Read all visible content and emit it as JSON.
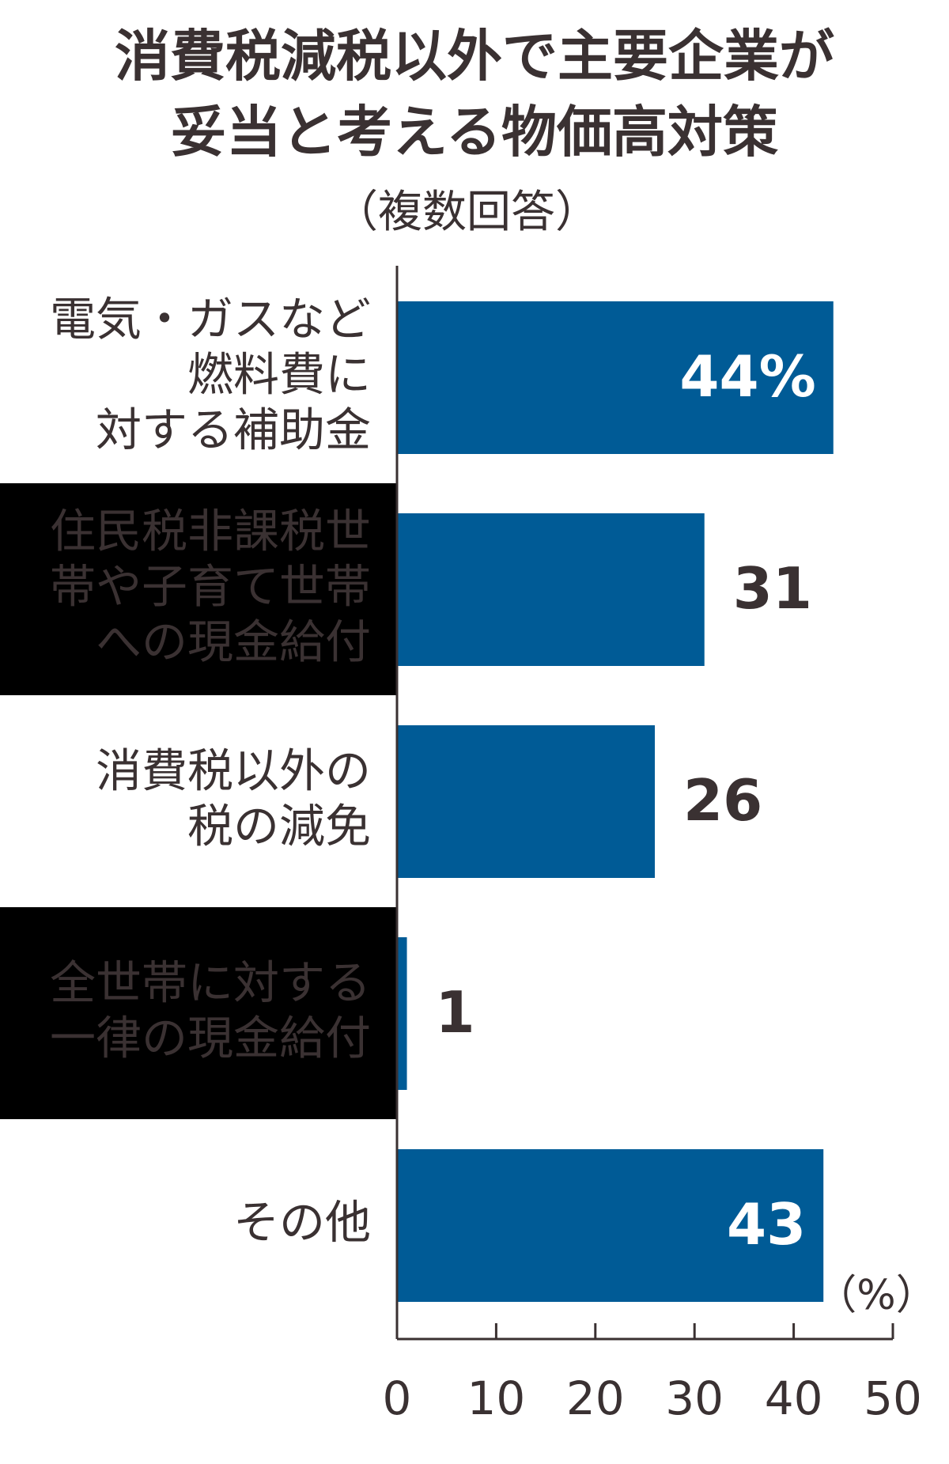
{
  "chart_data": {
    "type": "bar",
    "orientation": "horizontal",
    "title": "消費税減税以外で主要企業が\n妥当と考える物価高対策",
    "subtitle": "（複数回答）",
    "unit_label": "（%）",
    "categories": [
      "電気・ガスなど\n燃料費に\n対する補助金",
      "住民税非課税世\n帯や子育て世帯\nへの現金給付",
      "消費税以外の\n税の減免",
      "全世帯に対する\n一律の現金給付",
      "その他"
    ],
    "values": [
      44,
      31,
      26,
      1,
      43
    ],
    "value_labels": [
      "44%",
      "31",
      "26",
      "1",
      "43"
    ],
    "color": "#005b96",
    "xlim": [
      0,
      50
    ],
    "xticks": [
      0,
      10,
      20,
      30,
      40,
      50
    ]
  }
}
